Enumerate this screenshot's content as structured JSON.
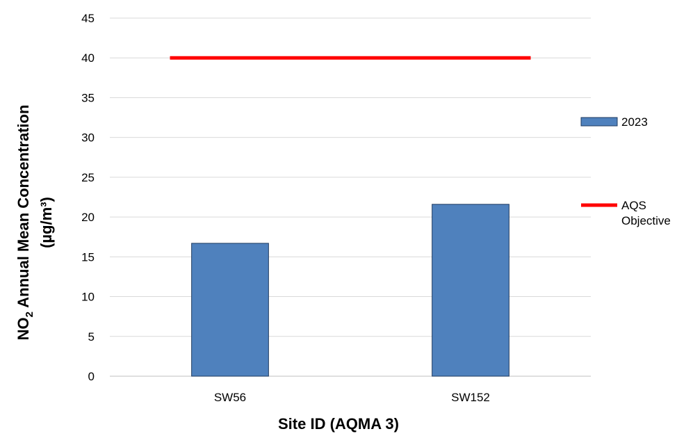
{
  "chart_data": {
    "type": "bar",
    "categories": [
      "SW56",
      "SW152"
    ],
    "series": [
      {
        "name": "2023",
        "values": [
          16.7,
          21.6
        ],
        "color": "#4F81BD"
      }
    ],
    "reference_line": {
      "name": "AQS Objective",
      "value": 40,
      "color": "#FF0000"
    },
    "xlabel": "Site ID (AQMA 3)",
    "ylabel": {
      "line1_main": "NO",
      "line1_sub": "2",
      "line1_rest": " Annual Mean Concentration",
      "line2": "(µg/m³)"
    },
    "ylim": [
      0,
      45
    ],
    "yticks": [
      0,
      5,
      10,
      15,
      20,
      25,
      30,
      35,
      40,
      45
    ],
    "grid": true,
    "legend_position": "right",
    "legend": {
      "series_label": "2023",
      "ref_label_line1": "AQS",
      "ref_label_line2": "Objective"
    }
  }
}
